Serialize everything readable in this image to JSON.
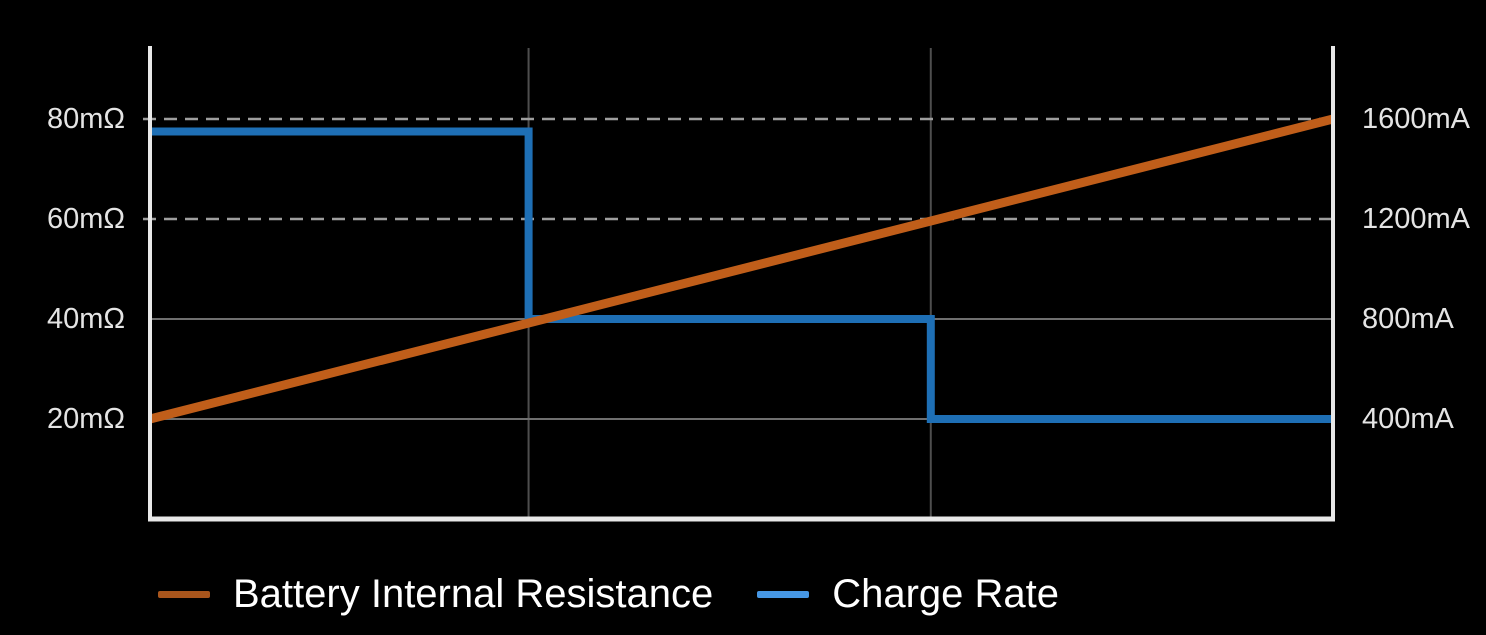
{
  "page": {
    "background": "#000000"
  },
  "chart_data": {
    "type": "line",
    "title": "",
    "description": "Battery internal resistance rises linearly while charge rate steps down",
    "x_axis": {
      "label": "",
      "tick_labels": [],
      "range": [
        0,
        1
      ],
      "gridline_positions": [
        0.32,
        0.66
      ]
    },
    "left_axis": {
      "label": "Battery Internal Resistance",
      "unit": "mΩ",
      "range": [
        0,
        94.6
      ],
      "ticks": [
        {
          "label": "20mΩ",
          "value": 20,
          "grid": "solid"
        },
        {
          "label": "40mΩ",
          "value": 40,
          "grid": "solid"
        },
        {
          "label": "60mΩ",
          "value": 60,
          "grid": "dashed"
        },
        {
          "label": "80mΩ",
          "value": 80,
          "grid": "dashed"
        }
      ]
    },
    "right_axis": {
      "label": "Charge Rate",
      "unit": "mA",
      "range": [
        0,
        1892
      ],
      "ticks": [
        {
          "label": "400mA",
          "value": 400
        },
        {
          "label": "800mA",
          "value": 800
        },
        {
          "label": "1200mA",
          "value": 1200
        },
        {
          "label": "1600mA",
          "value": 1600
        }
      ]
    },
    "series": [
      {
        "name": "Battery Internal Resistance",
        "axis": "left",
        "color": "#C05E1A",
        "line_width": 9,
        "shape": "linear",
        "points": [
          {
            "x": 0,
            "y": 20
          },
          {
            "x": 1,
            "y": 80
          }
        ]
      },
      {
        "name": "Charge Rate",
        "axis": "right",
        "color": "#1E6FB5",
        "line_width": 8,
        "shape": "step",
        "points": [
          {
            "x": 0,
            "y": 1550
          },
          {
            "x": 0.32,
            "y": 1550
          },
          {
            "x": 0.32,
            "y": 800
          },
          {
            "x": 0.66,
            "y": 800
          },
          {
            "x": 0.66,
            "y": 400
          },
          {
            "x": 1,
            "y": 400
          }
        ]
      }
    ],
    "legend": [
      {
        "label": "Battery Internal Resistance",
        "swatch_color": "#A8551C"
      },
      {
        "label": "Charge Rate",
        "swatch_color": "#4697E4"
      }
    ],
    "grid": {
      "vertical_color": "#4E4E4E",
      "solid_color": "#6F6F6F",
      "dashed_color": "#9E9E9E"
    },
    "axis_color": "#E8E8E8",
    "tick_text_color": "#E4E4E4",
    "legend_text_color": "#FFFFFF"
  }
}
